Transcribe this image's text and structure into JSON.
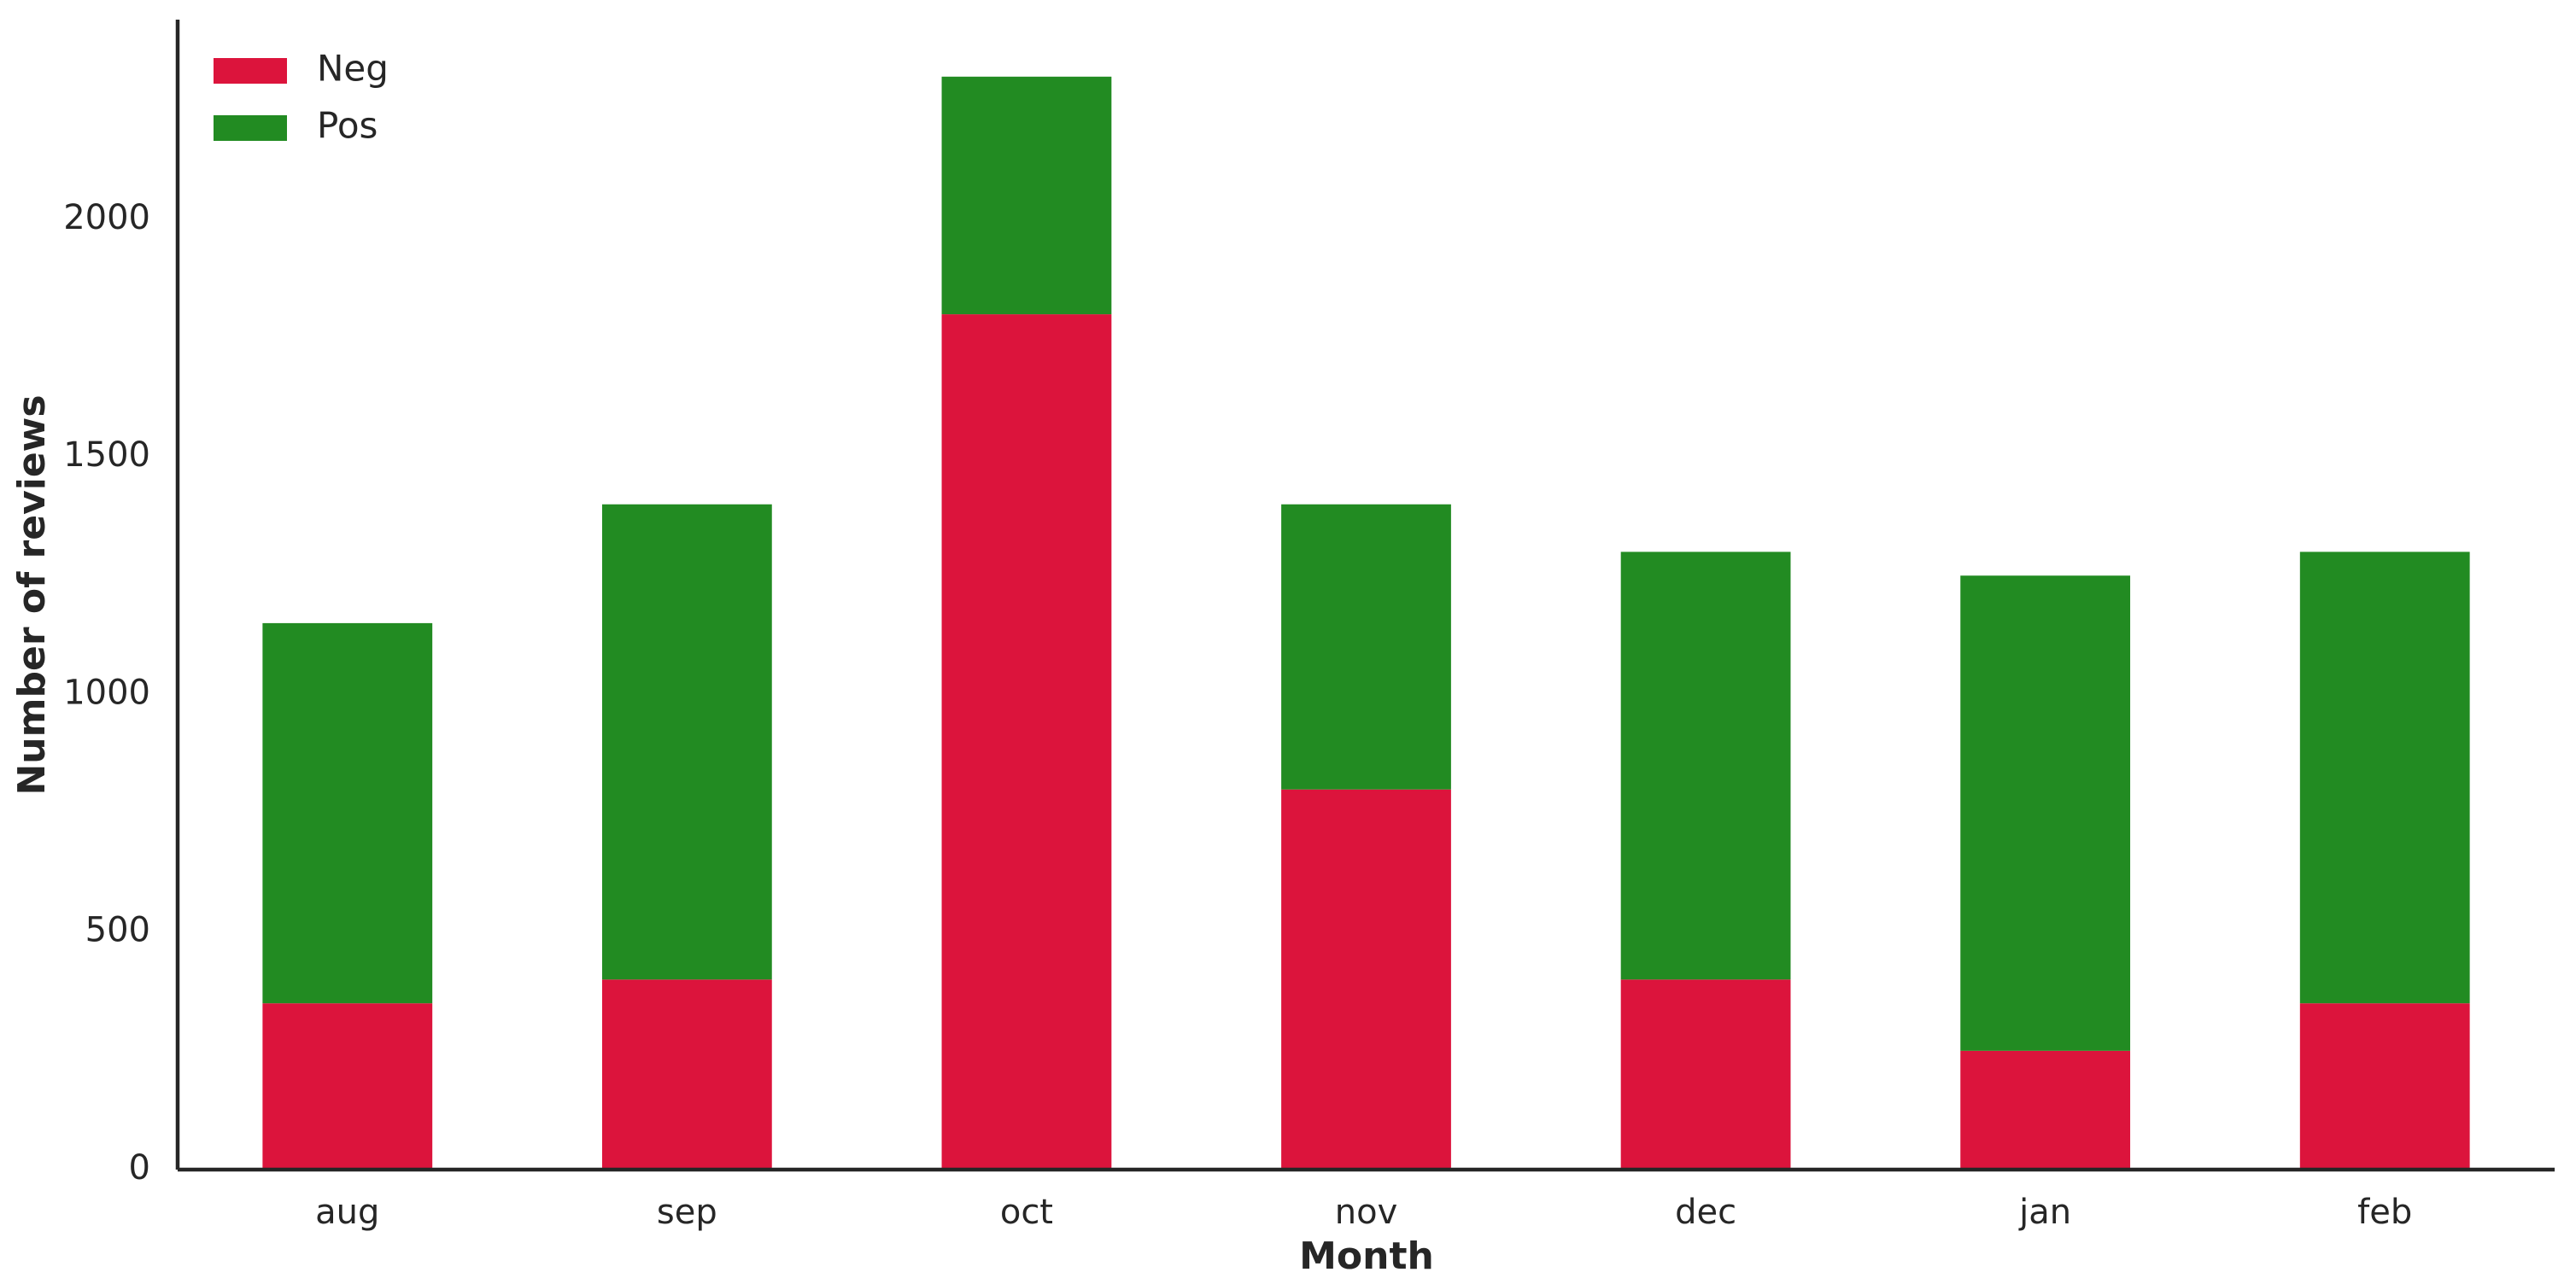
{
  "chart_data": {
    "type": "stacked_bar",
    "xlabel": "Month",
    "ylabel": "Number of reviews",
    "categories": [
      "aug",
      "sep",
      "oct",
      "nov",
      "dec",
      "jan",
      "feb"
    ],
    "series": [
      {
        "name": "Neg",
        "color": "#dc143c",
        "values": [
          350,
          400,
          1800,
          800,
          400,
          250,
          350
        ]
      },
      {
        "name": "Pos",
        "color": "#228b22",
        "values": [
          800,
          1000,
          500,
          600,
          900,
          1000,
          950
        ]
      }
    ],
    "ylim": [
      0,
      2420
    ],
    "yticks": [
      0,
      500,
      1000,
      1500,
      2000
    ],
    "grid": false,
    "legend": "upper-left"
  }
}
